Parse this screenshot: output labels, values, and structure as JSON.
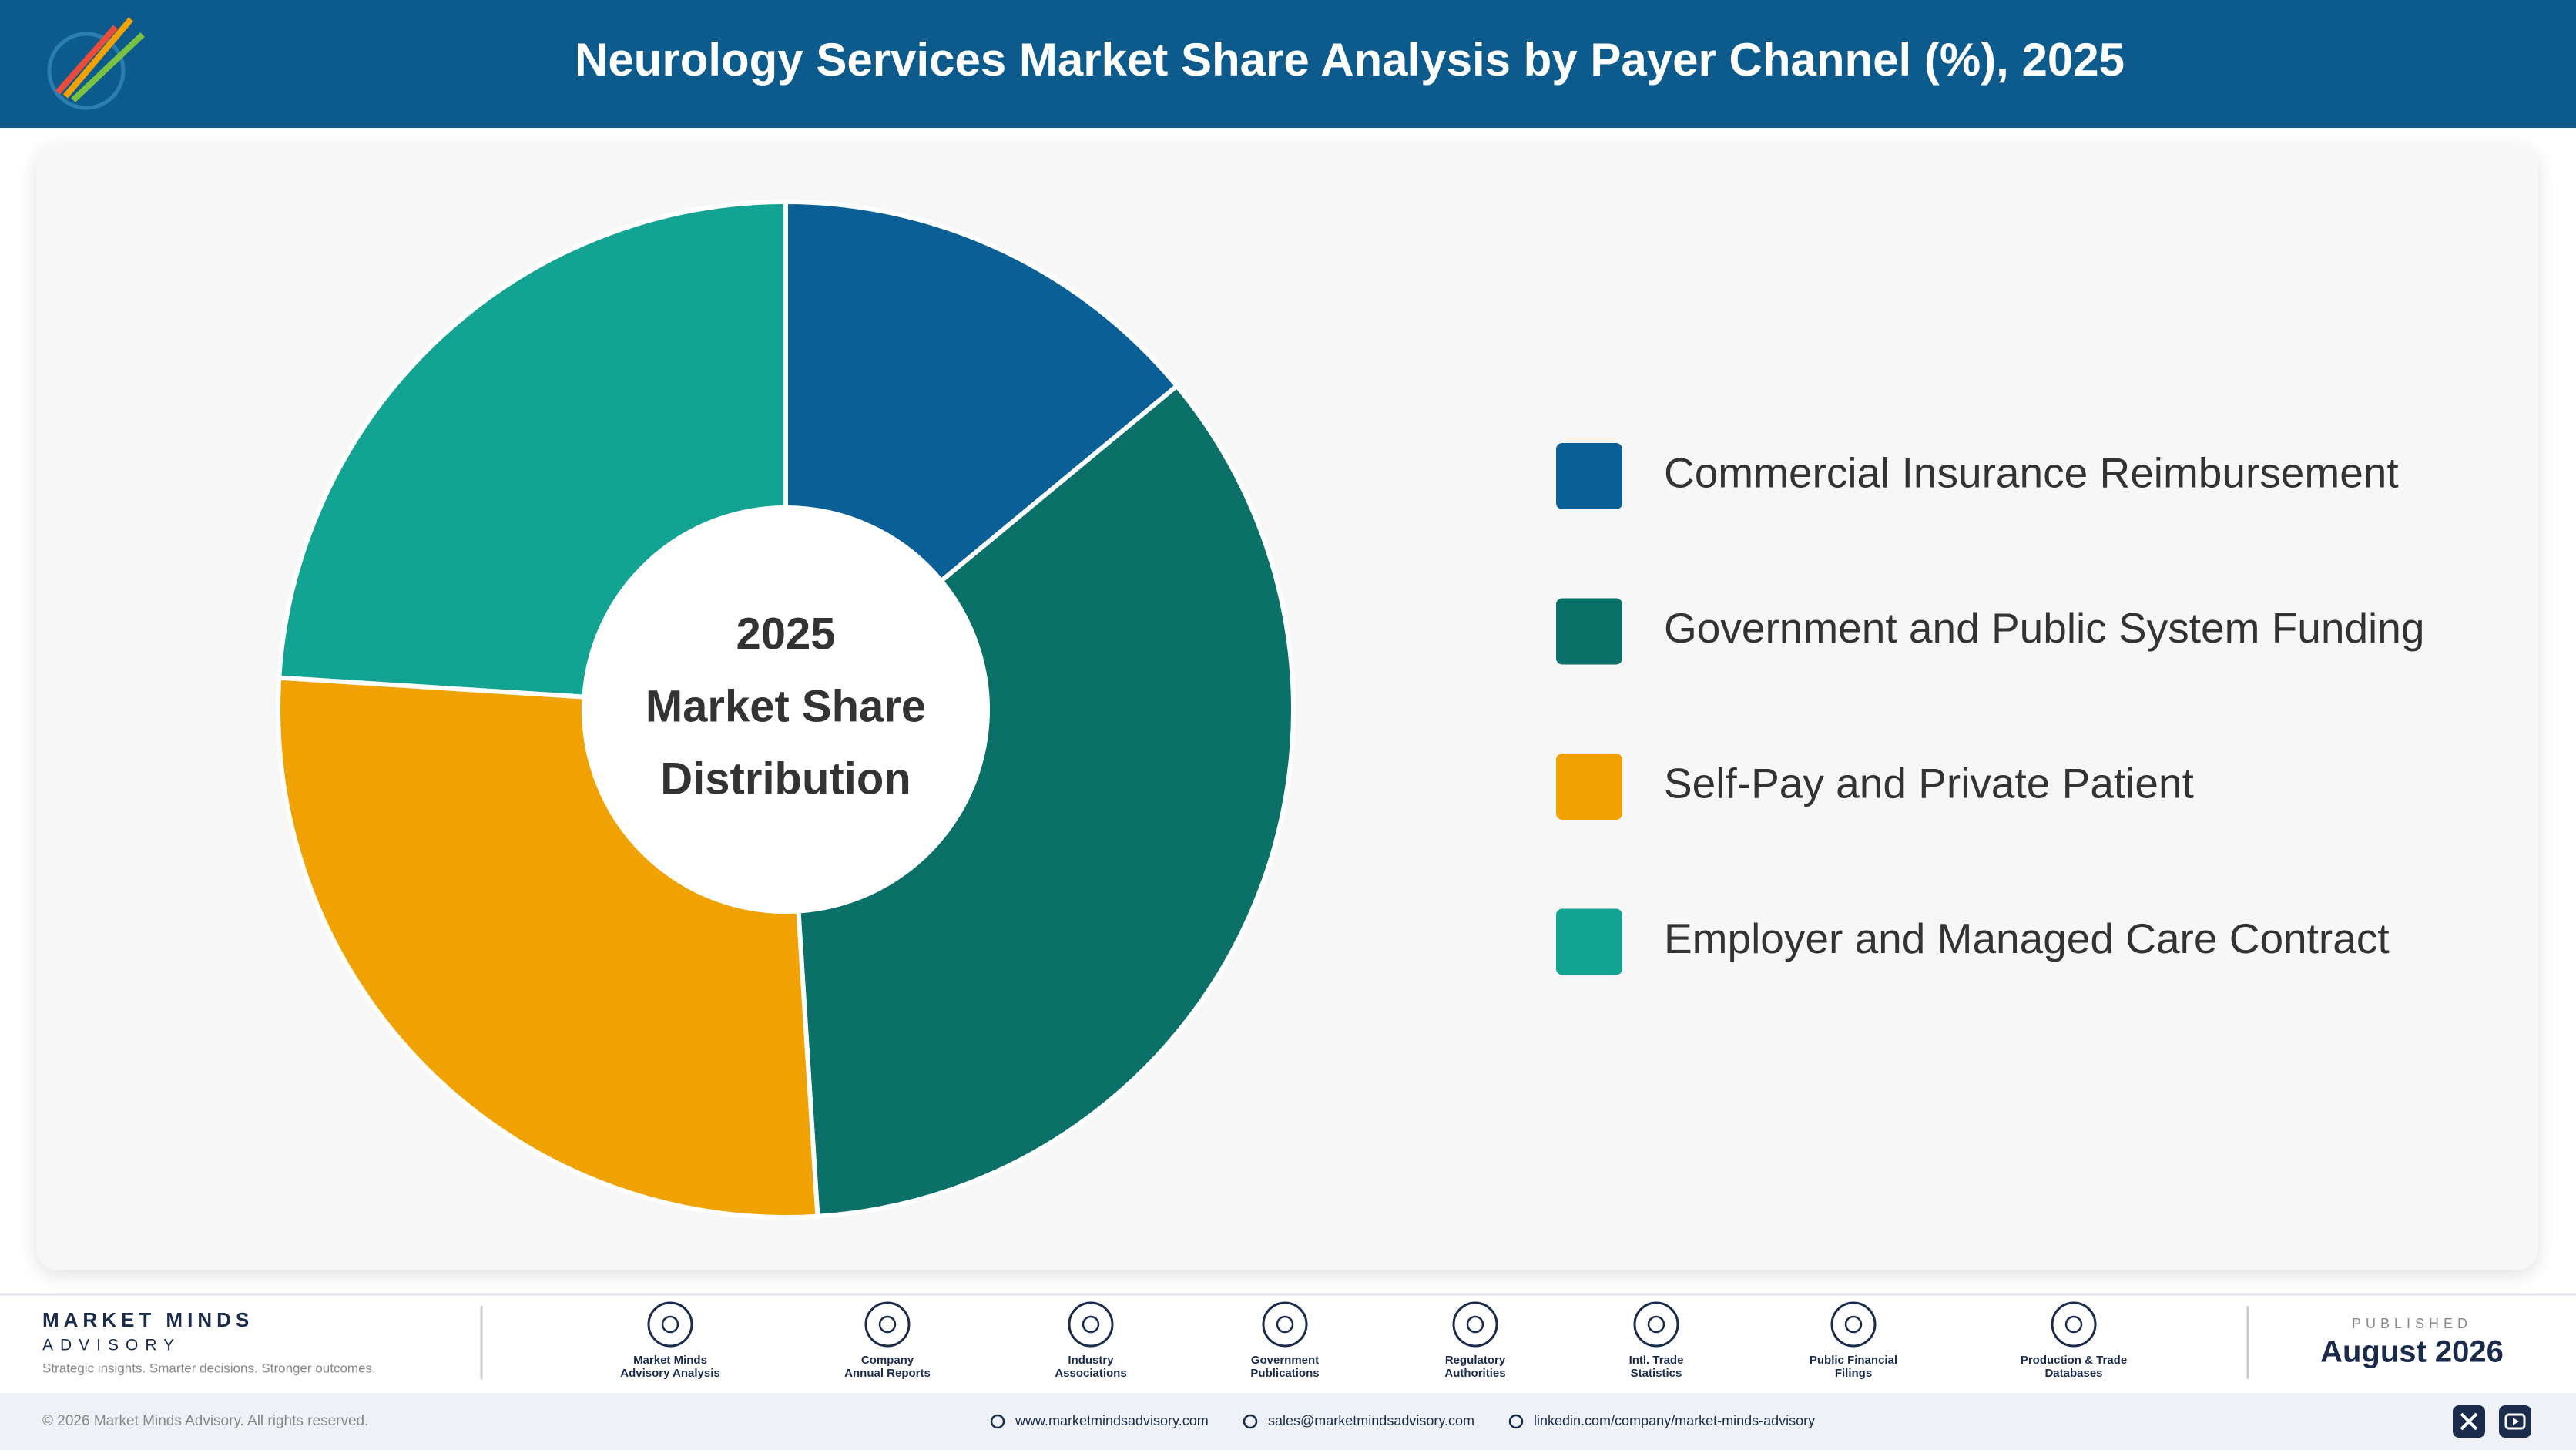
{
  "header": {
    "title": "Neurology Services Market Share Analysis by Payer Channel (%), 2025"
  },
  "chart_data": {
    "type": "pie",
    "donut": true,
    "center_text": [
      "2025",
      "Market Share",
      "Distribution"
    ],
    "categories": [
      "Commercial Insurance Reimbursement",
      "Government and Public System Funding",
      "Self-Pay and Private Patient",
      "Employer and Managed Care Contract"
    ],
    "values": [
      14,
      35,
      27,
      24
    ],
    "colors": [
      "#0a6096",
      "#0b7168",
      "#f0a202",
      "#13a392"
    ]
  },
  "footer": {
    "brand": "MARKET MINDS",
    "brand_sub": "ADVISORY",
    "tagline": "Strategic insights. Smarter decisions. Stronger outcomes.",
    "sources": [
      [
        "Market Minds",
        "Advisory Analysis"
      ],
      [
        "Company",
        "Annual Reports"
      ],
      [
        "Industry",
        "Associations"
      ],
      [
        "Government",
        "Publications"
      ],
      [
        "Regulatory",
        "Authorities"
      ],
      [
        "Intl. Trade",
        "Statistics"
      ],
      [
        "Public Financial",
        "Filings"
      ],
      [
        "Production & Trade",
        "Databases"
      ]
    ],
    "published_label": "PUBLISHED",
    "published_date": "August 2026",
    "copyright": "© 2026 Market Minds Advisory. All rights reserved.",
    "contacts": [
      "www.marketmindsadvisory.com",
      "sales@marketmindsadvisory.com",
      "linkedin.com/company/market-minds-advisory"
    ]
  }
}
